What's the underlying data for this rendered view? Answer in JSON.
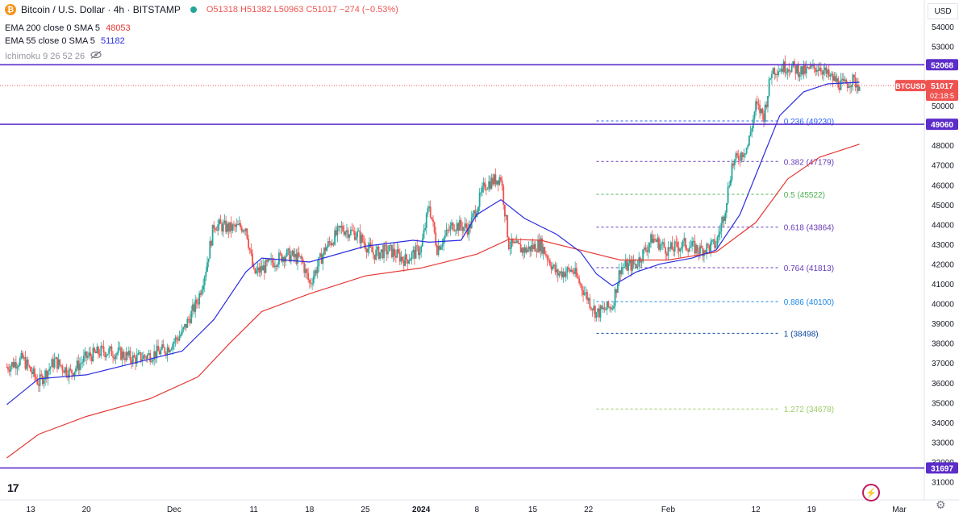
{
  "header": {
    "coin_symbol": "₿",
    "title": "Bitcoin / U.S. Dollar · 4h · BITSTAMP",
    "open": "O51318",
    "high": "H51382",
    "low": "L50963",
    "close": "C51017",
    "change": "−274 (−0.53%)"
  },
  "indicators": {
    "ema200_label": "EMA 200 close 0 SMA 5",
    "ema200_value": "48053",
    "ema55_label": "EMA 55 close 0 SMA 5",
    "ema55_value": "51182",
    "ichimoku_label": "Ichimoku 9 26 52 26",
    "eye_icon": "eye-slash-icon"
  },
  "currency": "USD",
  "logo": "17",
  "icons": [
    "bitcoin-icon",
    "status-dot-icon",
    "eye-slash-icon",
    "tradingview-logo-icon",
    "lightning-icon",
    "gear-icon"
  ],
  "colors": {
    "up": "#26a69a",
    "down": "#ef5350",
    "ema55": "#2a2ee0",
    "ema200": "#e53935",
    "level": "#5c2dc9",
    "price_line": "#ef5350"
  },
  "chart_data": {
    "type": "candlestick",
    "symbol": "BTCUSD",
    "timeframe": "4h",
    "ylim": [
      30600,
      55400
    ],
    "y_ticks": [
      31000,
      32000,
      33000,
      34000,
      35000,
      36000,
      37000,
      38000,
      39000,
      40000,
      41000,
      42000,
      43000,
      44000,
      45000,
      46000,
      47000,
      48000,
      49000,
      50000,
      51000,
      52000,
      53000,
      54000
    ],
    "x_ticks": [
      {
        "label": "13",
        "date": "2023-11-13"
      },
      {
        "label": "20",
        "date": "2023-11-20"
      },
      {
        "label": "Dec",
        "date": "2023-12-01"
      },
      {
        "label": "11",
        "date": "2023-12-11"
      },
      {
        "label": "18",
        "date": "2023-12-18"
      },
      {
        "label": "25",
        "date": "2023-12-25"
      },
      {
        "label": "2024",
        "date": "2024-01-01"
      },
      {
        "label": "8",
        "date": "2024-01-08"
      },
      {
        "label": "15",
        "date": "2024-01-15"
      },
      {
        "label": "22",
        "date": "2024-01-22"
      },
      {
        "label": "Feb",
        "date": "2024-02-01"
      },
      {
        "label": "12",
        "date": "2024-02-12"
      },
      {
        "label": "19",
        "date": "2024-02-19"
      },
      {
        "label": "Mar",
        "date": "2024-03-01"
      }
    ],
    "price_path": [
      [
        "2023-11-10",
        36800
      ],
      [
        "2023-11-12",
        37200
      ],
      [
        "2023-11-14",
        36000
      ],
      [
        "2023-11-16",
        37100
      ],
      [
        "2023-11-18",
        36500
      ],
      [
        "2023-11-20",
        37300
      ],
      [
        "2023-11-22",
        37600
      ],
      [
        "2023-11-24",
        37500
      ],
      [
        "2023-11-26",
        37200
      ],
      [
        "2023-11-28",
        37400
      ],
      [
        "2023-11-30",
        37700
      ],
      [
        "2023-12-02",
        38500
      ],
      [
        "2023-12-04",
        40200
      ],
      [
        "2023-12-05",
        41800
      ],
      [
        "2023-12-06",
        44000
      ],
      [
        "2023-12-08",
        43800
      ],
      [
        "2023-12-10",
        43900
      ],
      [
        "2023-12-11",
        41500
      ],
      [
        "2023-12-13",
        42000
      ],
      [
        "2023-12-15",
        42500
      ],
      [
        "2023-12-17",
        42200
      ],
      [
        "2023-12-18",
        41000
      ],
      [
        "2023-12-20",
        42800
      ],
      [
        "2023-12-22",
        43800
      ],
      [
        "2023-12-24",
        43500
      ],
      [
        "2023-12-26",
        42500
      ],
      [
        "2023-12-28",
        42700
      ],
      [
        "2023-12-30",
        42200
      ],
      [
        "2024-01-01",
        42800
      ],
      [
        "2024-01-02",
        45000
      ],
      [
        "2024-01-03",
        42800
      ],
      [
        "2024-01-05",
        44000
      ],
      [
        "2024-01-07",
        43800
      ],
      [
        "2024-01-09",
        46000
      ],
      [
        "2024-01-11",
        46400
      ],
      [
        "2024-01-12",
        43000
      ],
      [
        "2024-01-14",
        42700
      ],
      [
        "2024-01-16",
        43000
      ],
      [
        "2024-01-18",
        41500
      ],
      [
        "2024-01-20",
        41700
      ],
      [
        "2024-01-22",
        40200
      ],
      [
        "2024-01-23",
        39500
      ],
      [
        "2024-01-25",
        39900
      ],
      [
        "2024-01-26",
        41800
      ],
      [
        "2024-01-28",
        42000
      ],
      [
        "2024-01-30",
        43300
      ],
      [
        "2024-02-01",
        42700
      ],
      [
        "2024-02-03",
        43000
      ],
      [
        "2024-02-05",
        42700
      ],
      [
        "2024-02-07",
        43000
      ],
      [
        "2024-02-08",
        44500
      ],
      [
        "2024-02-09",
        47000
      ],
      [
        "2024-02-11",
        48000
      ],
      [
        "2024-02-12",
        50000
      ],
      [
        "2024-02-13",
        49500
      ],
      [
        "2024-02-14",
        51800
      ],
      [
        "2024-02-16",
        52000
      ],
      [
        "2024-02-18",
        51700
      ],
      [
        "2024-02-20",
        52000
      ],
      [
        "2024-02-21",
        51500
      ],
      [
        "2024-02-23",
        51000
      ],
      [
        "2024-02-24",
        51300
      ],
      [
        "2024-02-25",
        51017
      ]
    ],
    "ema55": [
      [
        "2023-11-10",
        34900
      ],
      [
        "2023-11-14",
        36200
      ],
      [
        "2023-11-20",
        36400
      ],
      [
        "2023-11-28",
        37200
      ],
      [
        "2023-12-02",
        37600
      ],
      [
        "2023-12-06",
        39200
      ],
      [
        "2023-12-10",
        41600
      ],
      [
        "2023-12-12",
        42300
      ],
      [
        "2023-12-18",
        42100
      ],
      [
        "2023-12-25",
        42900
      ],
      [
        "2023-12-31",
        43200
      ],
      [
        "2024-01-02",
        43100
      ],
      [
        "2024-01-06",
        43200
      ],
      [
        "2024-01-08",
        44500
      ],
      [
        "2024-01-11",
        45250
      ],
      [
        "2024-01-14",
        44300
      ],
      [
        "2024-01-18",
        43500
      ],
      [
        "2024-01-21",
        42600
      ],
      [
        "2024-01-23",
        41500
      ],
      [
        "2024-01-25",
        40900
      ],
      [
        "2024-01-28",
        41600
      ],
      [
        "2024-01-31",
        42000
      ],
      [
        "2024-02-04",
        42300
      ],
      [
        "2024-02-07",
        42700
      ],
      [
        "2024-02-10",
        44500
      ],
      [
        "2024-02-13",
        47500
      ],
      [
        "2024-02-15",
        49500
      ],
      [
        "2024-02-18",
        50700
      ],
      [
        "2024-02-21",
        51100
      ],
      [
        "2024-02-25",
        51182
      ]
    ],
    "ema200": [
      [
        "2023-11-10",
        32200
      ],
      [
        "2023-11-14",
        33400
      ],
      [
        "2023-11-20",
        34300
      ],
      [
        "2023-11-28",
        35200
      ],
      [
        "2023-12-04",
        36300
      ],
      [
        "2023-12-08",
        38000
      ],
      [
        "2023-12-12",
        39600
      ],
      [
        "2023-12-18",
        40500
      ],
      [
        "2023-12-25",
        41400
      ],
      [
        "2024-01-01",
        41800
      ],
      [
        "2024-01-08",
        42500
      ],
      [
        "2024-01-12",
        43250
      ],
      [
        "2024-01-16",
        43200
      ],
      [
        "2024-01-22",
        42600
      ],
      [
        "2024-01-26",
        42200
      ],
      [
        "2024-02-01",
        42200
      ],
      [
        "2024-02-07",
        42600
      ],
      [
        "2024-02-12",
        44100
      ],
      [
        "2024-02-16",
        46300
      ],
      [
        "2024-02-20",
        47400
      ],
      [
        "2024-02-25",
        48053
      ]
    ],
    "horizontal_levels": [
      {
        "price": 52068,
        "label": "52068"
      },
      {
        "price": 49060,
        "label": "49060"
      },
      {
        "price": 31697,
        "label": "31697"
      }
    ],
    "last_price": {
      "label": "BTCUSD",
      "price": "51017",
      "countdown": "02:18:5",
      "value": 51017
    },
    "fibonacci": {
      "start_date": "2024-01-23",
      "end_date": "2024-02-15",
      "levels": [
        {
          "ratio": "0.236",
          "price": 49230,
          "text": "0.236 (49230)",
          "color": "#2962ff"
        },
        {
          "ratio": "0.382",
          "price": 47179,
          "text": "0.382 (47179)",
          "color": "#673ab7"
        },
        {
          "ratio": "0.5",
          "price": 45522,
          "text": "0.5 (45522)",
          "color": "#4caf50"
        },
        {
          "ratio": "0.618",
          "price": 43864,
          "text": "0.618 (43864)",
          "color": "#673ab7"
        },
        {
          "ratio": "0.764",
          "price": 41813,
          "text": "0.764 (41813)",
          "color": "#673ab7"
        },
        {
          "ratio": "0.886",
          "price": 40100,
          "text": "0.886 (40100)",
          "color": "#1e88e5"
        },
        {
          "ratio": "1",
          "price": 38498,
          "text": "1 (38498)",
          "color": "#0d47a1"
        },
        {
          "ratio": "1.272",
          "price": 34678,
          "text": "1.272 (34678)",
          "color": "#9ccc65"
        }
      ]
    }
  }
}
